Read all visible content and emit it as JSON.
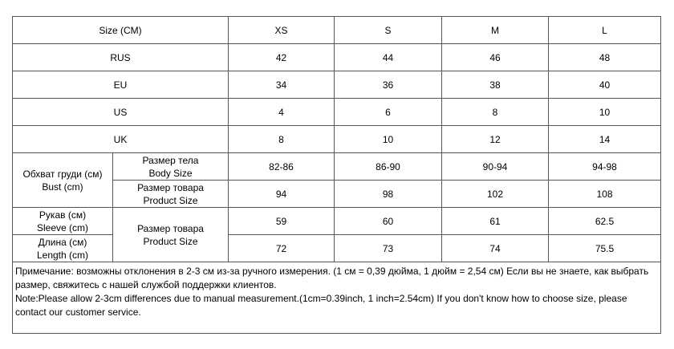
{
  "table": {
    "header": [
      "Size (CM)",
      "XS",
      "S",
      "M",
      "L"
    ],
    "rows": [
      {
        "label": "RUS",
        "values": [
          42,
          44,
          46,
          48
        ]
      },
      {
        "label": "EU",
        "values": [
          34,
          36,
          38,
          40
        ]
      },
      {
        "label": "US",
        "values": [
          4,
          6,
          8,
          10
        ]
      },
      {
        "label": "UK",
        "values": [
          8,
          10,
          12,
          14
        ]
      }
    ],
    "bust": {
      "label": [
        "Обхват груди (см)",
        "Bust (cm)"
      ],
      "rows": [
        {
          "label": [
            "Размер тела",
            "Body Size"
          ],
          "values": [
            "82-86",
            "86-90",
            "90-94",
            "94-98"
          ]
        },
        {
          "label": [
            "Размер товара",
            "Product Size"
          ],
          "values": [
            94,
            98,
            102,
            108
          ]
        }
      ]
    },
    "garment": {
      "label": [
        "Размер товара",
        "Product Size"
      ],
      "rows": [
        {
          "label": [
            "Рукав (см)",
            "Sleeve (cm)"
          ],
          "values": [
            59,
            60,
            61,
            62.5
          ]
        },
        {
          "label": [
            "Длина (см)",
            "Length (cm)"
          ],
          "values": [
            72,
            73,
            74,
            75.5
          ]
        }
      ]
    }
  },
  "note": [
    "Примечание: возможны отклонения в 2-3 см из-за ручного измерения. (1 см = 0,39 дюйма, 1 дюйм = 2,54 см) Если вы не знаете, как выбрать размер, свяжитесь с нашей службой поддержки клиентов.",
    "Note:Please allow 2-3cm differences due to manual measurement.(1cm=0.39inch, 1 inch=2.54cm) If you don't know how to choose size, please contact our customer service."
  ]
}
